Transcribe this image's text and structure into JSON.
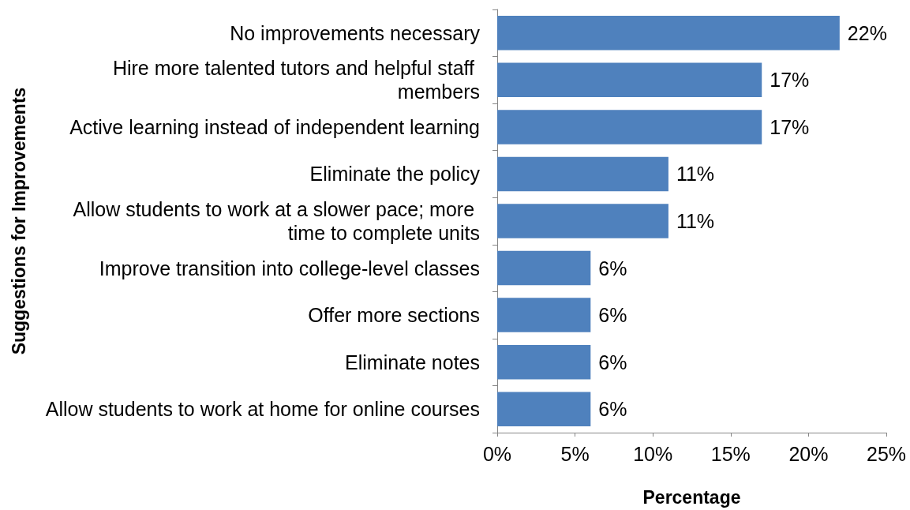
{
  "chart_data": {
    "type": "bar",
    "orientation": "horizontal",
    "xlabel": "Percentage",
    "ylabel": "Suggestions for Improvements",
    "categories": [
      "No improvements necessary",
      "Hire more talented tutors and helpful staff members",
      "Active learning instead of independent learning",
      "Eliminate the policy",
      "Allow students to work at a slower pace; more time to complete units",
      "Improve transition into college-level classes",
      "Offer more sections",
      "Eliminate notes",
      "Allow students to work at home for online courses"
    ],
    "values": [
      22,
      17,
      17,
      11,
      11,
      6,
      6,
      6,
      6
    ],
    "value_labels": [
      "22%",
      "17%",
      "17%",
      "11%",
      "11%",
      "6%",
      "6%",
      "6%",
      "6%"
    ],
    "color": "#4f81bd",
    "xlim": [
      0,
      25
    ],
    "xticks": [
      {
        "value": 0,
        "label": "0%"
      },
      {
        "value": 5,
        "label": "5%"
      },
      {
        "value": 10,
        "label": "10%"
      },
      {
        "value": 15,
        "label": "15%"
      },
      {
        "value": 20,
        "label": "20%"
      },
      {
        "value": 25,
        "label": "25%"
      }
    ],
    "grid": false
  }
}
